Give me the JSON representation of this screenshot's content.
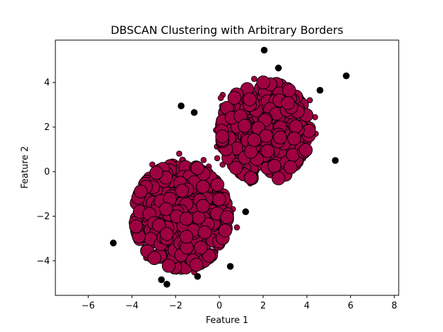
{
  "chart_data": {
    "type": "scatter",
    "title": "DBSCAN Clustering with Arbitrary Borders",
    "xlabel": "Feature 1",
    "ylabel": "Feature 2",
    "xlim": [
      -7.5,
      8.2
    ],
    "ylim": [
      -5.55,
      5.9
    ],
    "xticks": [
      -6,
      -4,
      -2,
      0,
      2,
      4,
      6,
      8
    ],
    "yticks": [
      -4,
      -2,
      0,
      2,
      4
    ],
    "xtick_labels": [
      "−6",
      "−4",
      "−2",
      "0",
      "2",
      "4",
      "6",
      "8"
    ],
    "ytick_labels": [
      "−4",
      "−2",
      "0",
      "2",
      "4"
    ],
    "grid": false,
    "colors": {
      "core": "#9e0142",
      "border": "#9e0142",
      "noise": "#000000",
      "edge": "#000000"
    },
    "clusters": [
      {
        "center": [
          2.1,
          1.8
        ],
        "spread": [
          0.95,
          1.05
        ],
        "core_points": 420,
        "border_points": 18
      },
      {
        "center": [
          -1.75,
          -2.0
        ],
        "spread": [
          1.0,
          1.1
        ],
        "core_points": 420,
        "border_points": 18
      }
    ],
    "noise_points": [
      [
        2.05,
        5.45
      ],
      [
        2.7,
        4.65
      ],
      [
        5.8,
        4.3
      ],
      [
        4.6,
        3.65
      ],
      [
        -1.75,
        2.95
      ],
      [
        -1.15,
        2.65
      ],
      [
        5.3,
        0.5
      ],
      [
        1.2,
        -1.8
      ],
      [
        -4.85,
        -3.2
      ],
      [
        0.5,
        -4.25
      ],
      [
        -2.65,
        -4.85
      ],
      [
        -2.4,
        -5.05
      ],
      [
        -1.0,
        -4.7
      ]
    ]
  }
}
